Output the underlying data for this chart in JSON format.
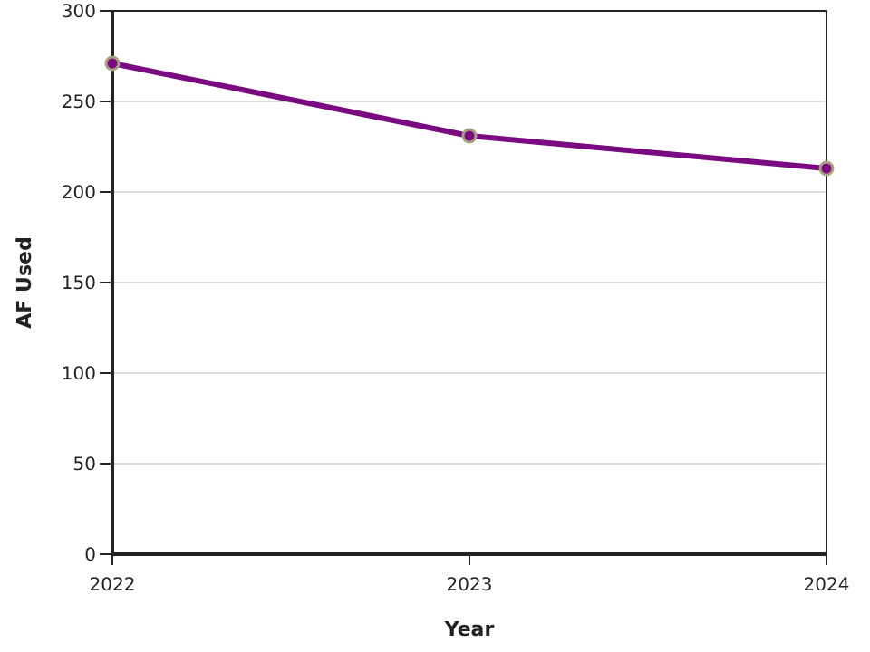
{
  "chart_data": {
    "type": "line",
    "xlabel": "Year",
    "ylabel": "AF Used",
    "x": [
      2022,
      2023,
      2024
    ],
    "xlim": [
      2022,
      2024
    ],
    "xticks": [
      2022,
      2023,
      2024
    ],
    "ylim": [
      0,
      300
    ],
    "yticks": [
      0,
      50,
      100,
      150,
      200,
      250,
      300
    ],
    "grid": "y",
    "marker": "circle",
    "line_style": "solid",
    "series": [
      {
        "color": "#7a0a80",
        "values": [
          271,
          231,
          213
        ]
      }
    ]
  }
}
